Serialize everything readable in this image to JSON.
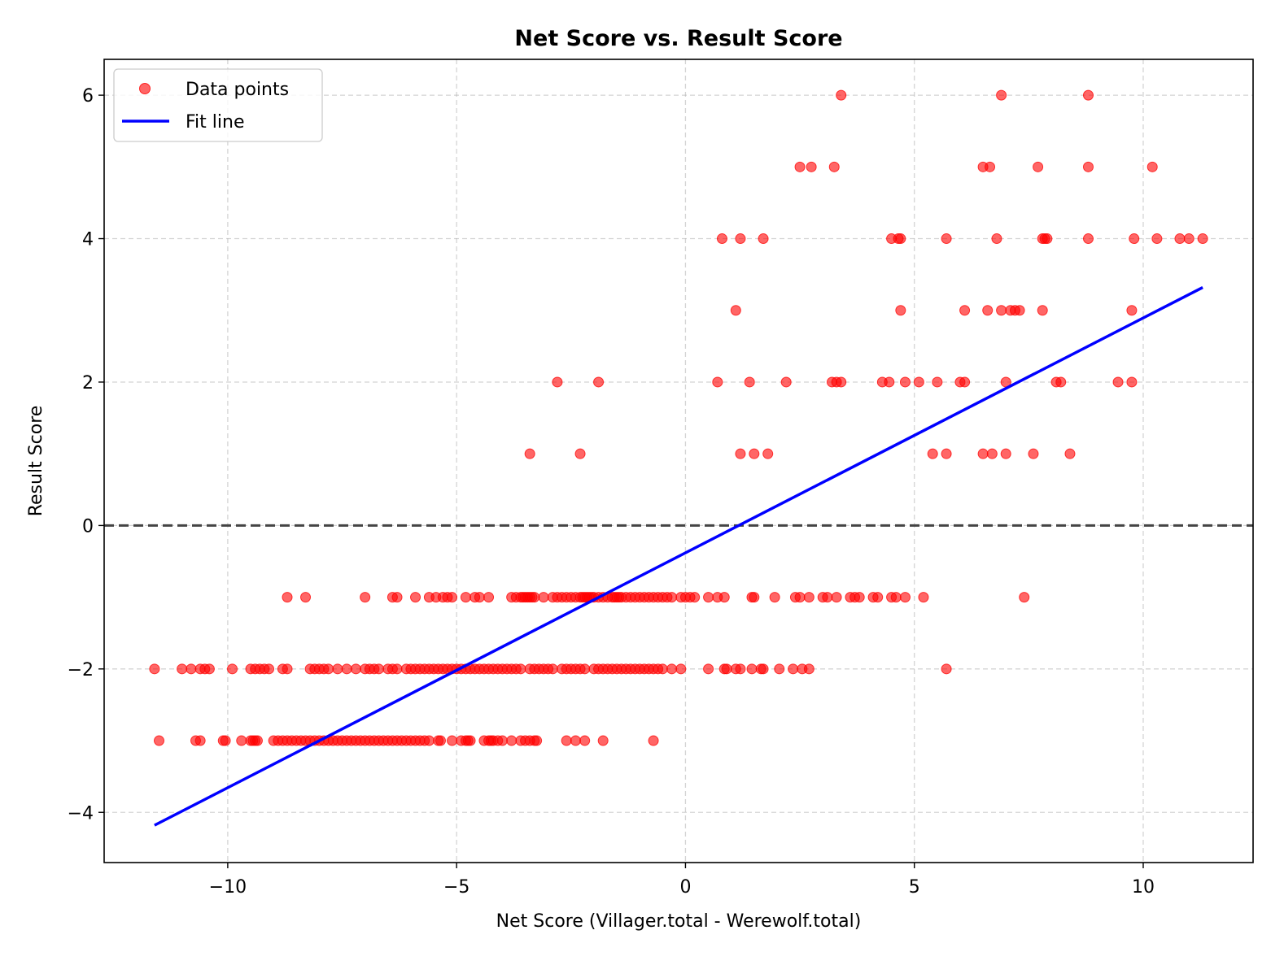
{
  "chart_data": {
    "type": "scatter",
    "title": "Net Score vs. Result Score",
    "xlabel": "Net Score (Villager.total - Werewolf.total)",
    "ylabel": "Result Score",
    "xlim": [
      -12.7,
      12.4
    ],
    "ylim": [
      -4.7,
      6.5
    ],
    "x_ticks": [
      -10,
      -5,
      0,
      5,
      10
    ],
    "x_tick_labels": [
      "−10",
      "−5",
      "0",
      "5",
      "10"
    ],
    "y_ticks": [
      -4,
      -2,
      0,
      2,
      4,
      6
    ],
    "y_tick_labels": [
      "−4",
      "−2",
      "0",
      "2",
      "4",
      "6"
    ],
    "grid": true,
    "legend": {
      "position": "top-left",
      "entries": [
        "Data points",
        "Fit line"
      ]
    },
    "colors": {
      "points": "#ff0000",
      "fit_line": "#0000ff",
      "zero_line": "#444444"
    },
    "reference_line": {
      "y": 0,
      "style": "dashed"
    },
    "series": [
      {
        "name": "Data points",
        "type": "scatter",
        "points": [
          [
            3.4,
            6
          ],
          [
            6.9,
            6
          ],
          [
            8.8,
            6
          ],
          [
            2.5,
            5
          ],
          [
            2.75,
            5
          ],
          [
            3.25,
            5
          ],
          [
            6.5,
            5
          ],
          [
            6.65,
            5
          ],
          [
            7.7,
            5
          ],
          [
            8.8,
            5
          ],
          [
            10.2,
            5
          ],
          [
            0.8,
            4
          ],
          [
            1.2,
            4
          ],
          [
            1.7,
            4
          ],
          [
            4.5,
            4
          ],
          [
            4.65,
            4
          ],
          [
            4.7,
            4
          ],
          [
            5.7,
            4
          ],
          [
            6.8,
            4
          ],
          [
            7.8,
            4
          ],
          [
            7.85,
            4
          ],
          [
            7.9,
            4
          ],
          [
            8.8,
            4
          ],
          [
            9.8,
            4
          ],
          [
            10.3,
            4
          ],
          [
            10.8,
            4
          ],
          [
            11.0,
            4
          ],
          [
            11.3,
            4
          ],
          [
            1.1,
            3
          ],
          [
            4.7,
            3
          ],
          [
            6.1,
            3
          ],
          [
            6.6,
            3
          ],
          [
            6.9,
            3
          ],
          [
            7.1,
            3
          ],
          [
            7.2,
            3
          ],
          [
            7.3,
            3
          ],
          [
            7.8,
            3
          ],
          [
            9.75,
            3
          ],
          [
            -2.8,
            2
          ],
          [
            -1.9,
            2
          ],
          [
            0.7,
            2
          ],
          [
            1.4,
            2
          ],
          [
            2.2,
            2
          ],
          [
            3.2,
            2
          ],
          [
            3.3,
            2
          ],
          [
            3.4,
            2
          ],
          [
            4.3,
            2
          ],
          [
            4.45,
            2
          ],
          [
            4.8,
            2
          ],
          [
            5.1,
            2
          ],
          [
            5.5,
            2
          ],
          [
            6.0,
            2
          ],
          [
            6.1,
            2
          ],
          [
            7.0,
            2
          ],
          [
            8.1,
            2
          ],
          [
            8.2,
            2
          ],
          [
            9.45,
            2
          ],
          [
            9.75,
            2
          ],
          [
            -3.4,
            1
          ],
          [
            -2.3,
            1
          ],
          [
            1.2,
            1
          ],
          [
            1.5,
            1
          ],
          [
            1.8,
            1
          ],
          [
            5.4,
            1
          ],
          [
            5.7,
            1
          ],
          [
            6.5,
            1
          ],
          [
            6.7,
            1
          ],
          [
            7.0,
            1
          ],
          [
            7.6,
            1
          ],
          [
            8.4,
            1
          ],
          [
            -8.7,
            -1
          ],
          [
            -8.3,
            -1
          ],
          [
            -7.0,
            -1
          ],
          [
            -6.4,
            -1
          ],
          [
            -6.3,
            -1
          ],
          [
            -5.9,
            -1
          ],
          [
            -5.6,
            -1
          ],
          [
            -5.45,
            -1
          ],
          [
            -5.3,
            -1
          ],
          [
            -5.2,
            -1
          ],
          [
            -5.1,
            -1
          ],
          [
            -4.8,
            -1
          ],
          [
            -4.6,
            -1
          ],
          [
            -4.5,
            -1
          ],
          [
            -4.3,
            -1
          ],
          [
            -3.8,
            -1
          ],
          [
            -3.7,
            -1
          ],
          [
            -3.6,
            -1
          ],
          [
            -3.55,
            -1
          ],
          [
            -3.5,
            -1
          ],
          [
            -3.45,
            -1
          ],
          [
            -3.4,
            -1
          ],
          [
            -3.35,
            -1
          ],
          [
            -3.3,
            -1
          ],
          [
            -3.1,
            -1
          ],
          [
            -2.9,
            -1
          ],
          [
            -2.8,
            -1
          ],
          [
            -2.7,
            -1
          ],
          [
            -2.6,
            -1
          ],
          [
            -2.5,
            -1
          ],
          [
            -2.4,
            -1
          ],
          [
            -2.3,
            -1
          ],
          [
            -2.25,
            -1
          ],
          [
            -2.2,
            -1
          ],
          [
            -2.15,
            -1
          ],
          [
            -2.1,
            -1
          ],
          [
            -2.05,
            -1
          ],
          [
            -2.0,
            -1
          ],
          [
            -1.9,
            -1
          ],
          [
            -1.8,
            -1
          ],
          [
            -1.7,
            -1
          ],
          [
            -1.6,
            -1
          ],
          [
            -1.55,
            -1
          ],
          [
            -1.5,
            -1
          ],
          [
            -1.45,
            -1
          ],
          [
            -1.4,
            -1
          ],
          [
            -1.3,
            -1
          ],
          [
            -1.2,
            -1
          ],
          [
            -1.1,
            -1
          ],
          [
            -1.0,
            -1
          ],
          [
            -0.9,
            -1
          ],
          [
            -0.8,
            -1
          ],
          [
            -0.7,
            -1
          ],
          [
            -0.6,
            -1
          ],
          [
            -0.5,
            -1
          ],
          [
            -0.4,
            -1
          ],
          [
            -0.3,
            -1
          ],
          [
            -0.1,
            -1
          ],
          [
            0.0,
            -1
          ],
          [
            0.1,
            -1
          ],
          [
            0.2,
            -1
          ],
          [
            0.5,
            -1
          ],
          [
            0.7,
            -1
          ],
          [
            0.85,
            -1
          ],
          [
            1.45,
            -1
          ],
          [
            1.5,
            -1
          ],
          [
            1.95,
            -1
          ],
          [
            2.4,
            -1
          ],
          [
            2.5,
            -1
          ],
          [
            2.7,
            -1
          ],
          [
            3.0,
            -1
          ],
          [
            3.1,
            -1
          ],
          [
            3.3,
            -1
          ],
          [
            3.6,
            -1
          ],
          [
            3.7,
            -1
          ],
          [
            3.8,
            -1
          ],
          [
            4.1,
            -1
          ],
          [
            4.2,
            -1
          ],
          [
            4.5,
            -1
          ],
          [
            4.6,
            -1
          ],
          [
            4.8,
            -1
          ],
          [
            5.2,
            -1
          ],
          [
            7.4,
            -1
          ],
          [
            -11.6,
            -2
          ],
          [
            -11.0,
            -2
          ],
          [
            -10.8,
            -2
          ],
          [
            -10.6,
            -2
          ],
          [
            -10.5,
            -2
          ],
          [
            -10.4,
            -2
          ],
          [
            -9.9,
            -2
          ],
          [
            -9.5,
            -2
          ],
          [
            -9.4,
            -2
          ],
          [
            -9.3,
            -2
          ],
          [
            -9.2,
            -2
          ],
          [
            -9.1,
            -2
          ],
          [
            -8.8,
            -2
          ],
          [
            -8.7,
            -2
          ],
          [
            -8.2,
            -2
          ],
          [
            -8.1,
            -2
          ],
          [
            -8.0,
            -2
          ],
          [
            -7.9,
            -2
          ],
          [
            -7.8,
            -2
          ],
          [
            -7.6,
            -2
          ],
          [
            -7.4,
            -2
          ],
          [
            -7.2,
            -2
          ],
          [
            -7.0,
            -2
          ],
          [
            -6.9,
            -2
          ],
          [
            -6.8,
            -2
          ],
          [
            -6.7,
            -2
          ],
          [
            -6.5,
            -2
          ],
          [
            -6.4,
            -2
          ],
          [
            -6.3,
            -2
          ],
          [
            -6.1,
            -2
          ],
          [
            -6.0,
            -2
          ],
          [
            -5.9,
            -2
          ],
          [
            -5.8,
            -2
          ],
          [
            -5.7,
            -2
          ],
          [
            -5.6,
            -2
          ],
          [
            -5.5,
            -2
          ],
          [
            -5.4,
            -2
          ],
          [
            -5.3,
            -2
          ],
          [
            -5.2,
            -2
          ],
          [
            -5.1,
            -2
          ],
          [
            -5.0,
            -2
          ],
          [
            -4.9,
            -2
          ],
          [
            -4.8,
            -2
          ],
          [
            -4.7,
            -2
          ],
          [
            -4.6,
            -2
          ],
          [
            -4.5,
            -2
          ],
          [
            -4.4,
            -2
          ],
          [
            -4.3,
            -2
          ],
          [
            -4.2,
            -2
          ],
          [
            -4.1,
            -2
          ],
          [
            -4.0,
            -2
          ],
          [
            -3.9,
            -2
          ],
          [
            -3.8,
            -2
          ],
          [
            -3.7,
            -2
          ],
          [
            -3.6,
            -2
          ],
          [
            -3.4,
            -2
          ],
          [
            -3.3,
            -2
          ],
          [
            -3.2,
            -2
          ],
          [
            -3.1,
            -2
          ],
          [
            -3.0,
            -2
          ],
          [
            -2.9,
            -2
          ],
          [
            -2.7,
            -2
          ],
          [
            -2.6,
            -2
          ],
          [
            -2.5,
            -2
          ],
          [
            -2.4,
            -2
          ],
          [
            -2.3,
            -2
          ],
          [
            -2.2,
            -2
          ],
          [
            -2.0,
            -2
          ],
          [
            -1.9,
            -2
          ],
          [
            -1.8,
            -2
          ],
          [
            -1.7,
            -2
          ],
          [
            -1.6,
            -2
          ],
          [
            -1.5,
            -2
          ],
          [
            -1.4,
            -2
          ],
          [
            -1.3,
            -2
          ],
          [
            -1.2,
            -2
          ],
          [
            -1.1,
            -2
          ],
          [
            -1.0,
            -2
          ],
          [
            -0.9,
            -2
          ],
          [
            -0.8,
            -2
          ],
          [
            -0.7,
            -2
          ],
          [
            -0.6,
            -2
          ],
          [
            -0.5,
            -2
          ],
          [
            -0.3,
            -2
          ],
          [
            -0.1,
            -2
          ],
          [
            0.5,
            -2
          ],
          [
            0.85,
            -2
          ],
          [
            0.9,
            -2
          ],
          [
            1.1,
            -2
          ],
          [
            1.2,
            -2
          ],
          [
            1.45,
            -2
          ],
          [
            1.65,
            -2
          ],
          [
            1.7,
            -2
          ],
          [
            2.05,
            -2
          ],
          [
            2.35,
            -2
          ],
          [
            2.55,
            -2
          ],
          [
            2.7,
            -2
          ],
          [
            5.7,
            -2
          ],
          [
            -11.5,
            -3
          ],
          [
            -10.7,
            -3
          ],
          [
            -10.6,
            -3
          ],
          [
            -10.1,
            -3
          ],
          [
            -10.05,
            -3
          ],
          [
            -9.7,
            -3
          ],
          [
            -9.5,
            -3
          ],
          [
            -9.45,
            -3
          ],
          [
            -9.4,
            -3
          ],
          [
            -9.35,
            -3
          ],
          [
            -9.0,
            -3
          ],
          [
            -8.9,
            -3
          ],
          [
            -8.8,
            -3
          ],
          [
            -8.7,
            -3
          ],
          [
            -8.6,
            -3
          ],
          [
            -8.5,
            -3
          ],
          [
            -8.4,
            -3
          ],
          [
            -8.3,
            -3
          ],
          [
            -8.2,
            -3
          ],
          [
            -8.1,
            -3
          ],
          [
            -8.0,
            -3
          ],
          [
            -7.9,
            -3
          ],
          [
            -7.8,
            -3
          ],
          [
            -7.7,
            -3
          ],
          [
            -7.6,
            -3
          ],
          [
            -7.5,
            -3
          ],
          [
            -7.4,
            -3
          ],
          [
            -7.3,
            -3
          ],
          [
            -7.2,
            -3
          ],
          [
            -7.1,
            -3
          ],
          [
            -7.0,
            -3
          ],
          [
            -6.9,
            -3
          ],
          [
            -6.8,
            -3
          ],
          [
            -6.7,
            -3
          ],
          [
            -6.6,
            -3
          ],
          [
            -6.5,
            -3
          ],
          [
            -6.4,
            -3
          ],
          [
            -6.3,
            -3
          ],
          [
            -6.2,
            -3
          ],
          [
            -6.1,
            -3
          ],
          [
            -6.0,
            -3
          ],
          [
            -5.9,
            -3
          ],
          [
            -5.8,
            -3
          ],
          [
            -5.7,
            -3
          ],
          [
            -5.6,
            -3
          ],
          [
            -5.4,
            -3
          ],
          [
            -5.35,
            -3
          ],
          [
            -5.1,
            -3
          ],
          [
            -4.9,
            -3
          ],
          [
            -4.8,
            -3
          ],
          [
            -4.75,
            -3
          ],
          [
            -4.7,
            -3
          ],
          [
            -4.4,
            -3
          ],
          [
            -4.3,
            -3
          ],
          [
            -4.25,
            -3
          ],
          [
            -4.2,
            -3
          ],
          [
            -4.1,
            -3
          ],
          [
            -4.0,
            -3
          ],
          [
            -3.8,
            -3
          ],
          [
            -3.6,
            -3
          ],
          [
            -3.5,
            -3
          ],
          [
            -3.4,
            -3
          ],
          [
            -3.3,
            -3
          ],
          [
            -3.25,
            -3
          ],
          [
            -2.6,
            -3
          ],
          [
            -2.4,
            -3
          ],
          [
            -2.2,
            -3
          ],
          [
            -1.8,
            -3
          ],
          [
            -0.7,
            -3
          ]
        ]
      },
      {
        "name": "Fit line",
        "type": "line",
        "points": [
          [
            -11.6,
            -4.18
          ],
          [
            11.3,
            3.32
          ]
        ]
      }
    ]
  }
}
